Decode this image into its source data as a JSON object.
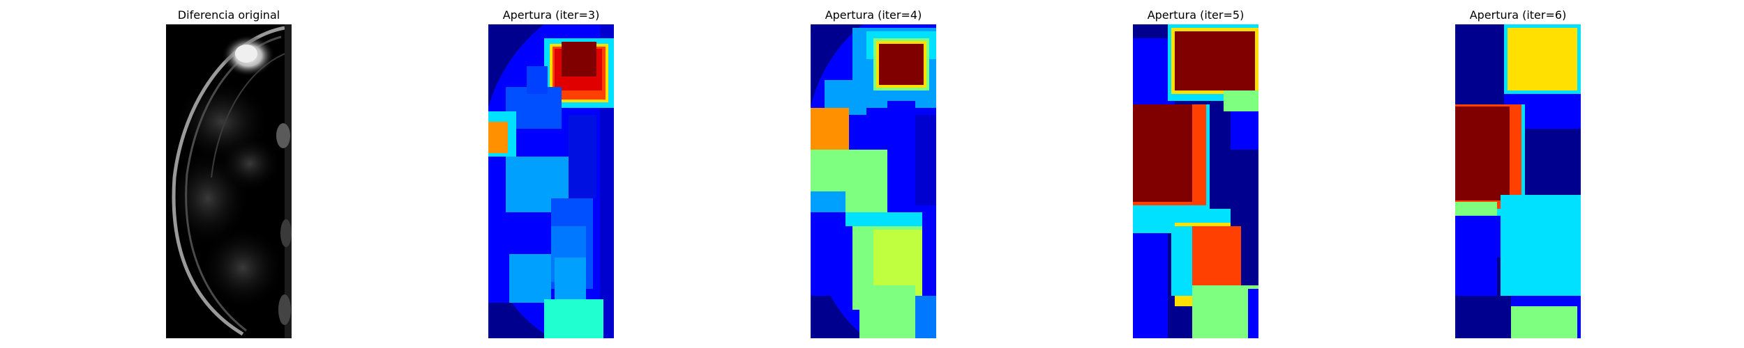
{
  "figure": {
    "panels": [
      {
        "title": "Diferencia original",
        "colormap": "gray"
      },
      {
        "title": "Apertura (iter=3)",
        "colormap": "jet"
      },
      {
        "title": "Apertura (iter=4)",
        "colormap": "jet"
      },
      {
        "title": "Apertura (iter=5)",
        "colormap": "jet"
      },
      {
        "title": "Apertura (iter=6)",
        "colormap": "jet"
      }
    ]
  },
  "colors": {
    "background": "#ffffff",
    "jet_dark_blue": "#00008f",
    "jet_blue": "#0000ff",
    "jet_mid_blue": "#0050ff",
    "jet_light_blue": "#00a0ff",
    "jet_cyan": "#00e0ff",
    "jet_aqua": "#20ffd0",
    "jet_green": "#7fff7f",
    "jet_yellow_green": "#c0ff40",
    "jet_yellow": "#ffe000",
    "jet_orange": "#ff9000",
    "jet_red_orange": "#ff4000",
    "jet_red": "#e00000",
    "jet_dark_red": "#800000"
  }
}
